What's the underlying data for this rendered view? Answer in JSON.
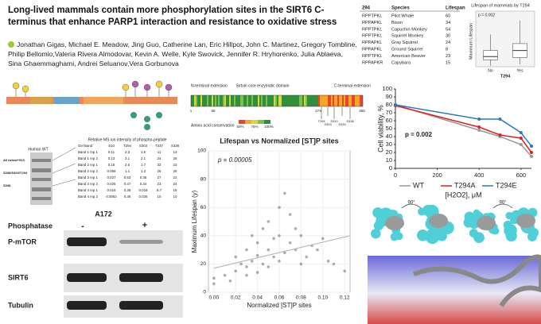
{
  "header": {
    "title": "Long-lived mammals contain more phosphorylation sites in the SIRT6 C-terminus that enhance PARP1 interaction and resistance to oxidative stress",
    "authors": "Jonathan Gigas, Michael E. Meadow, Jing Guo, Catherine Lan, Eric Hillpot, John C. Martinez, Gregory Tombline, Philip Bellomio,Valeria Rivera Almodovar, Kevin A. Welle, Kyle Swovick, Jennifer R. Hryhorenko, Julia Ablaeva, Sina Ghaemmaghami, Andrei Seluanov,Vera Gorbunova"
  },
  "species_table": {
    "columns": [
      "294",
      "Species",
      "Lifespan"
    ],
    "rows": [
      [
        "RPPTPKL",
        "Pilot Whale",
        60
      ],
      [
        "RPPAPKL",
        "Bison",
        34
      ],
      [
        "RPPTPKL",
        "Capuchin Monkey",
        54
      ],
      [
        "RPPTPKL",
        "Squirrel Monkey",
        30
      ],
      [
        "RPPAPKL",
        "Gray Squirrel",
        24
      ],
      [
        "RPPAPKL",
        "Ground Squirrel",
        8
      ],
      [
        "RPPTPKL",
        "American Beaver",
        23
      ],
      [
        "RPPAPKR",
        "Capybara",
        15
      ]
    ]
  },
  "domain_map": {
    "labels": [
      "N-terminal extension",
      "Sirtuin core enzymatic domain",
      "C-terminal extension"
    ],
    "positions": [
      1,
      85,
      274,
      355
    ],
    "sites": [
      "T294",
      "S303",
      "S310",
      "S330",
      "S338"
    ],
    "legend_title": "Amino acid conservation",
    "legend_ticks": [
      "50%",
      "75%",
      "100%"
    ]
  },
  "gel": {
    "sample": "Human WT",
    "bands": [
      "All below+S10",
      "S338/S303/T294",
      "S338"
    ],
    "table_title": "Relative MS ion intensity of phospho-peptide",
    "columns": [
      "Gel Band",
      "S10",
      "T294",
      "S303",
      "T337",
      "S338"
    ],
    "rows": [
      [
        "Band 1 mp 1",
        0.11,
        2.3,
        1.5,
        11,
        13
      ],
      [
        "Band 1 mp 2",
        0.13,
        3.1,
        2.1,
        24,
        25
      ],
      [
        "Band 2 mp 1",
        0.15,
        2.5,
        1.7,
        33,
        23
      ],
      [
        "Band 2 mp 2",
        0.059,
        1.1,
        1.3,
        26,
        25
      ],
      [
        "Band 3 mp 1",
        0.027,
        0.53,
        0.35,
        27,
        22
      ],
      [
        "Band 3 mp 2",
        0.025,
        0.47,
        0.34,
        23,
        24
      ],
      [
        "Band 4 mp 1",
        0.016,
        0.36,
        0.018,
        8.7,
        15
      ],
      [
        "Band 4 mp 2",
        0.0062,
        0.36,
        0.026,
        10,
        10
      ]
    ]
  },
  "western": {
    "cell_line": "A172",
    "treatment": "Phosphatase",
    "lanes": [
      "-",
      "+"
    ],
    "proteins": [
      "P-mTOR",
      "SIRT6",
      "Tubulin"
    ]
  },
  "structure": {
    "rotations": [
      "90°",
      "90°"
    ]
  },
  "chart_data": [
    {
      "type": "scatter",
      "title": "Lifespan vs Normalized [ST]P sites",
      "annotation": "p = 0.00005",
      "x_label": "Normalized [ST]P sites",
      "y_label": "Maximum Lifespan (y)",
      "x": [
        0.0,
        0.0,
        0.01,
        0.015,
        0.02,
        0.02,
        0.025,
        0.03,
        0.03,
        0.03,
        0.035,
        0.035,
        0.04,
        0.04,
        0.04,
        0.045,
        0.045,
        0.05,
        0.05,
        0.05,
        0.055,
        0.055,
        0.06,
        0.06,
        0.06,
        0.065,
        0.065,
        0.07,
        0.07,
        0.075,
        0.075,
        0.08,
        0.08,
        0.085,
        0.09,
        0.095,
        0.1,
        0.105,
        0.11,
        0.12
      ],
      "values": [
        10,
        6,
        12,
        8,
        15,
        25,
        20,
        12,
        30,
        18,
        22,
        40,
        14,
        26,
        35,
        20,
        45,
        30,
        18,
        50,
        25,
        38,
        22,
        60,
        40,
        28,
        70,
        35,
        55,
        30,
        45,
        40,
        20,
        25,
        33,
        30,
        38,
        22,
        20,
        15
      ],
      "color": "#777777",
      "trend": {
        "x": [
          0,
          0.125
        ],
        "y": [
          17,
          40
        ]
      },
      "trend_color": "#bbbbbb",
      "xlim": [
        -0.005,
        0.125
      ],
      "xticks": [
        {
          "value": 0,
          "label": "0.00"
        },
        0.02,
        0.04,
        0.06,
        0.08,
        {
          "value": 0.1,
          "label": "0.10"
        },
        0.12
      ],
      "ylim": [
        0,
        100
      ],
      "yticks": [
        0,
        20,
        40,
        60,
        80,
        100
      ],
      "grid": true
    },
    {
      "type": "line",
      "annotation": "p = 0.002",
      "x_label": "[H2O2], μM",
      "y_label": "Cell viability, %",
      "x": [
        0,
        400,
        500,
        600,
        650
      ],
      "series": [
        {
          "name": "WT",
          "color": "#999999",
          "values": [
            80,
            48,
            40,
            30,
            15
          ]
        },
        {
          "name": "T294A",
          "color": "#e02020",
          "values": [
            79,
            52,
            42,
            38,
            20
          ]
        },
        {
          "name": "T294E",
          "color": "#2a7ab8",
          "values": [
            80,
            62,
            62,
            45,
            28
          ]
        }
      ],
      "xlim": [
        0,
        650
      ],
      "xticks": [
        0,
        200,
        400,
        600
      ],
      "ylim": [
        0,
        100
      ],
      "yticks": [
        0,
        10,
        20,
        30,
        40,
        50,
        60,
        70,
        80,
        90,
        100
      ],
      "grid": false,
      "legend": "bottom"
    },
    {
      "type": "box",
      "title": "Lifespan of mammals by T294",
      "annotation": "p = 0.002",
      "x_label": "T294",
      "y_label": "Maximum Lifespan",
      "categories": [
        "No",
        "Yes"
      ],
      "boxes": [
        {
          "min": 2,
          "q1": 15,
          "median": 22,
          "q3": 35,
          "max": 70
        },
        {
          "min": 5,
          "q1": 20,
          "median": 35,
          "q3": 50,
          "max": 100
        }
      ],
      "ylim": [
        0,
        110
      ],
      "color": "#ffffff"
    }
  ]
}
